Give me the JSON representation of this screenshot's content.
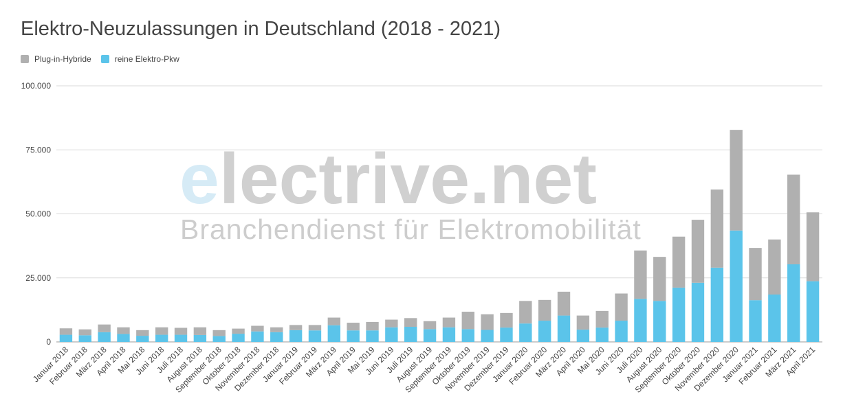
{
  "colors": {
    "phev": "#b0b0b0",
    "bev": "#5bc4ea",
    "grid": "#d9d9d9",
    "text": "#444444"
  },
  "watermark": {
    "e": "e",
    "rest": "lectrive.net",
    "tagline": "Branchendienst für Elektromobilität"
  },
  "chart_data": {
    "type": "bar",
    "stacked": true,
    "title": "Elektro-Neuzulassungen in Deutschland (2018 - 2021)",
    "legend_position": "top-left",
    "grid": true,
    "ylim": [
      0,
      100000
    ],
    "yticks": [
      0,
      25000,
      50000,
      75000,
      100000
    ],
    "ytick_labels": [
      "0",
      "25.000",
      "50.000",
      "75.000",
      "100.000"
    ],
    "categories": [
      "Januar 2018",
      "Februar 2018",
      "März 2018",
      "April 2018",
      "Mai 2018",
      "Juni 2018",
      "Juli 2018",
      "August 2018",
      "September 2018",
      "Oktober 2018",
      "November 2018",
      "Dezember 2018",
      "Januar 2019",
      "Februar 2019",
      "März 2019",
      "April 2019",
      "Mai 2019",
      "Juni 2019",
      "Juli 2019",
      "August 2019",
      "September 2019",
      "Oktober 2019",
      "November 2019",
      "Dezember 2019",
      "Januar 2020",
      "Februar 2020",
      "März 2020",
      "April 2020",
      "Mai 2020",
      "Juni 2020",
      "Juli 2020",
      "August 2020",
      "September 2020",
      "Oktober 2020",
      "November 2020",
      "Dezember 2020",
      "Januar 2021",
      "Februar 2021",
      "März 2021",
      "April 2021"
    ],
    "series": [
      {
        "name": "reine Elektro-Pkw",
        "color": "#5bc4ea",
        "values": [
          2800,
          2600,
          3800,
          3100,
          2400,
          2800,
          2800,
          2700,
          2300,
          3200,
          4100,
          3800,
          4600,
          4500,
          6500,
          4500,
          4500,
          5700,
          5900,
          5000,
          5700,
          5000,
          4700,
          5600,
          7200,
          8300,
          10300,
          4800,
          5600,
          8300,
          16800,
          16000,
          21200,
          23100,
          29000,
          43500,
          16300,
          18500,
          30300,
          23700
        ]
      },
      {
        "name": "Plug-in-Hybride",
        "color": "#b0b0b0",
        "values": [
          2500,
          2300,
          3000,
          2600,
          2200,
          2900,
          2700,
          3000,
          2300,
          2000,
          2200,
          1900,
          2000,
          2100,
          3000,
          3000,
          3300,
          3000,
          3400,
          3100,
          3800,
          6800,
          6100,
          5700,
          8800,
          8100,
          9300,
          5500,
          6500,
          10600,
          18900,
          17200,
          19900,
          24600,
          30500,
          39300,
          20400,
          21500,
          35000,
          26900
        ]
      }
    ]
  }
}
